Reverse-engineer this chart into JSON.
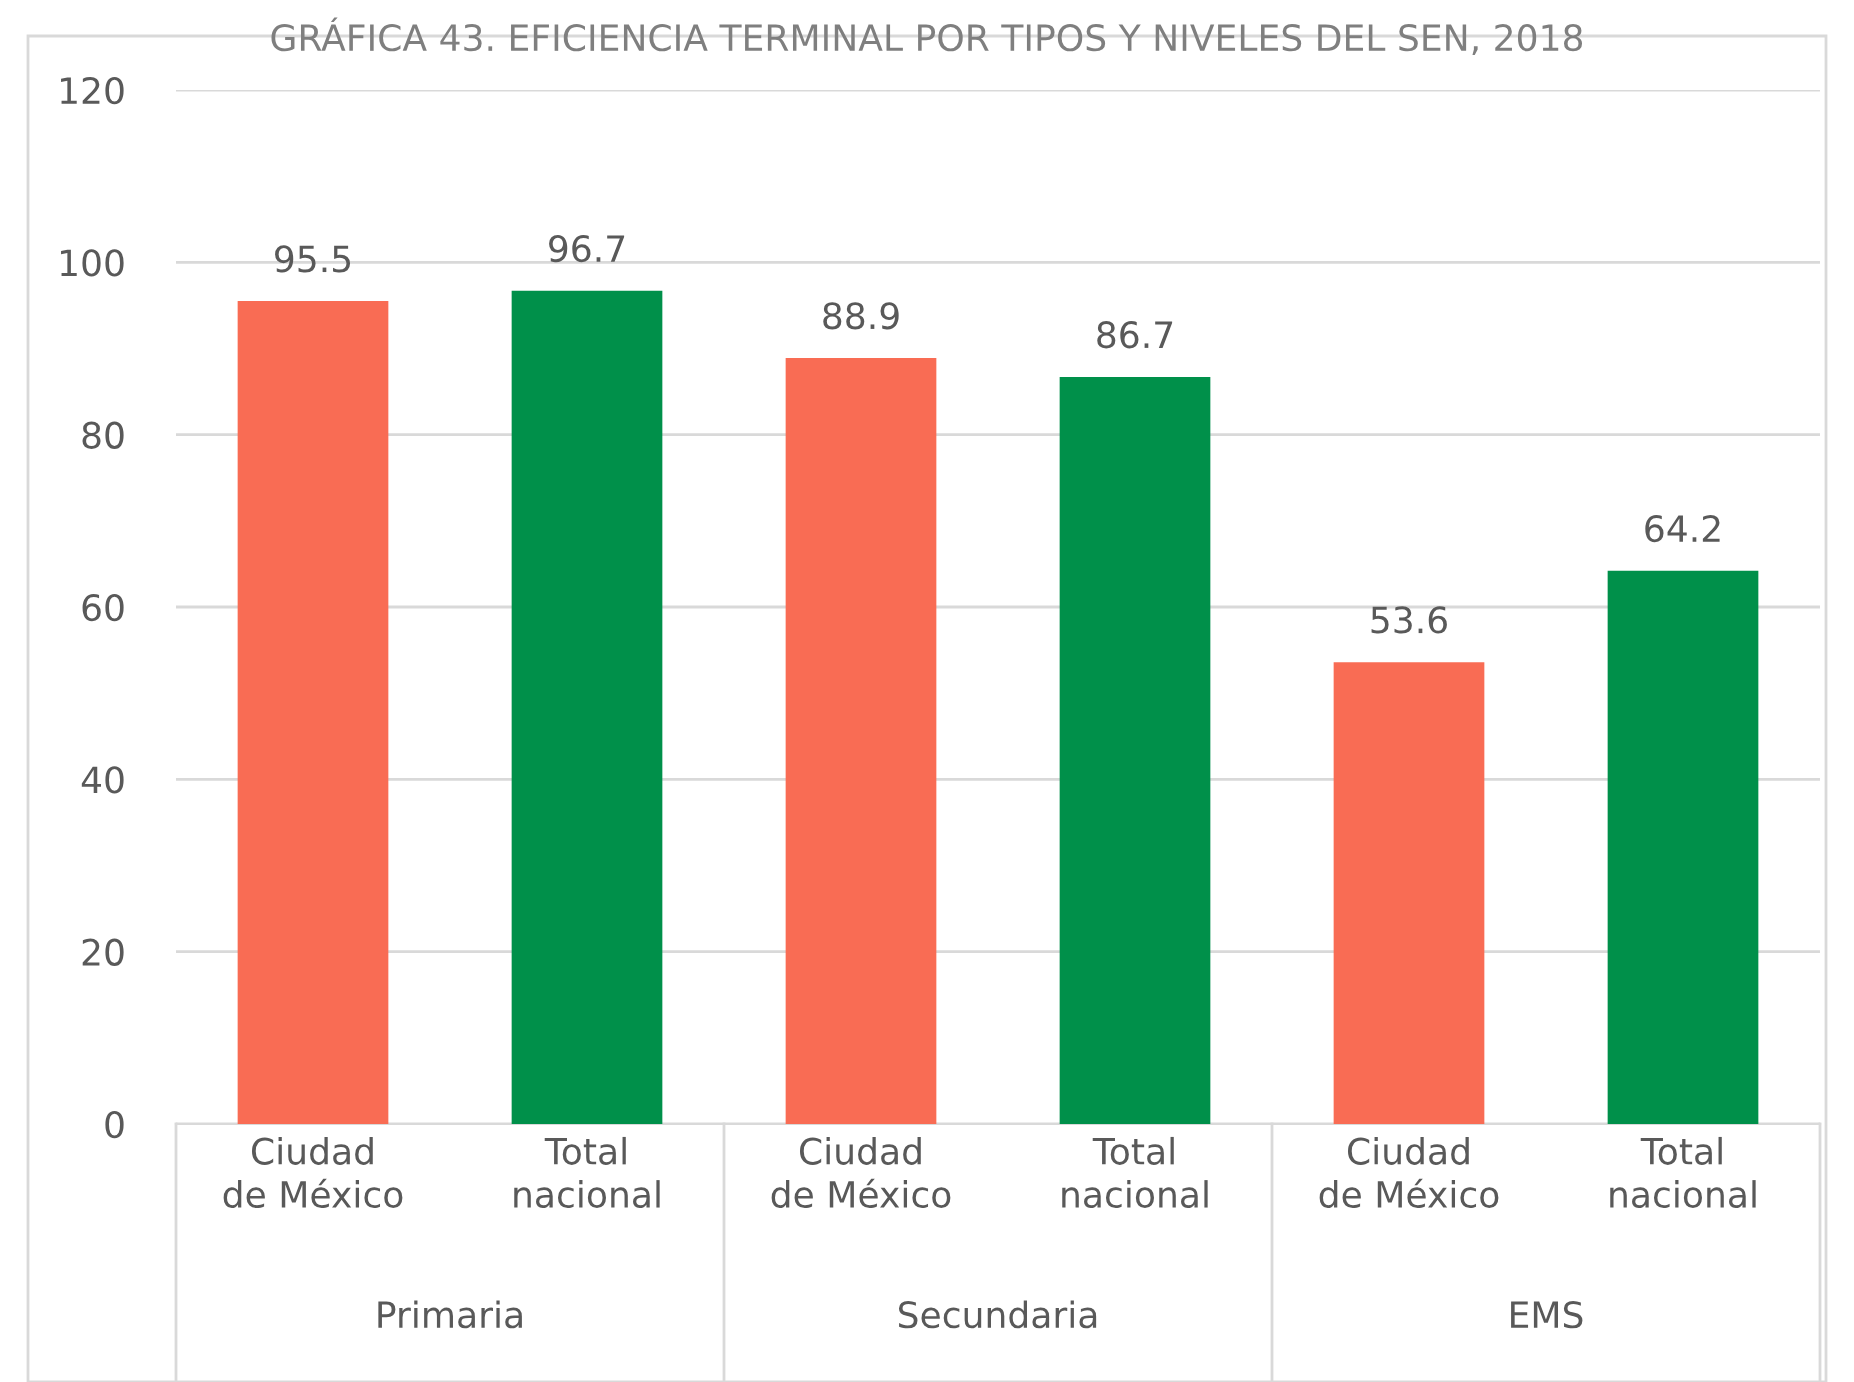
{
  "chart_data": {
    "type": "bar",
    "title": "GRÁFICA 43. EFICIENCIA TERMINAL POR TIPOS Y NIVELES DEL SEN, 2018",
    "categories": [
      "Primaria",
      "Secundaria",
      "EMS"
    ],
    "series": [
      {
        "name": "Ciudad de México",
        "color": "#f96c54",
        "values": [
          95.5,
          88.9,
          53.6
        ]
      },
      {
        "name": "Total nacional",
        "color": "#00904a",
        "values": [
          96.7,
          86.7,
          64.2
        ]
      }
    ],
    "ylim": [
      0,
      120
    ],
    "yticks": [
      0,
      20,
      40,
      60,
      80,
      100,
      120
    ],
    "grid": "y",
    "data_labels": true,
    "legend": false
  }
}
